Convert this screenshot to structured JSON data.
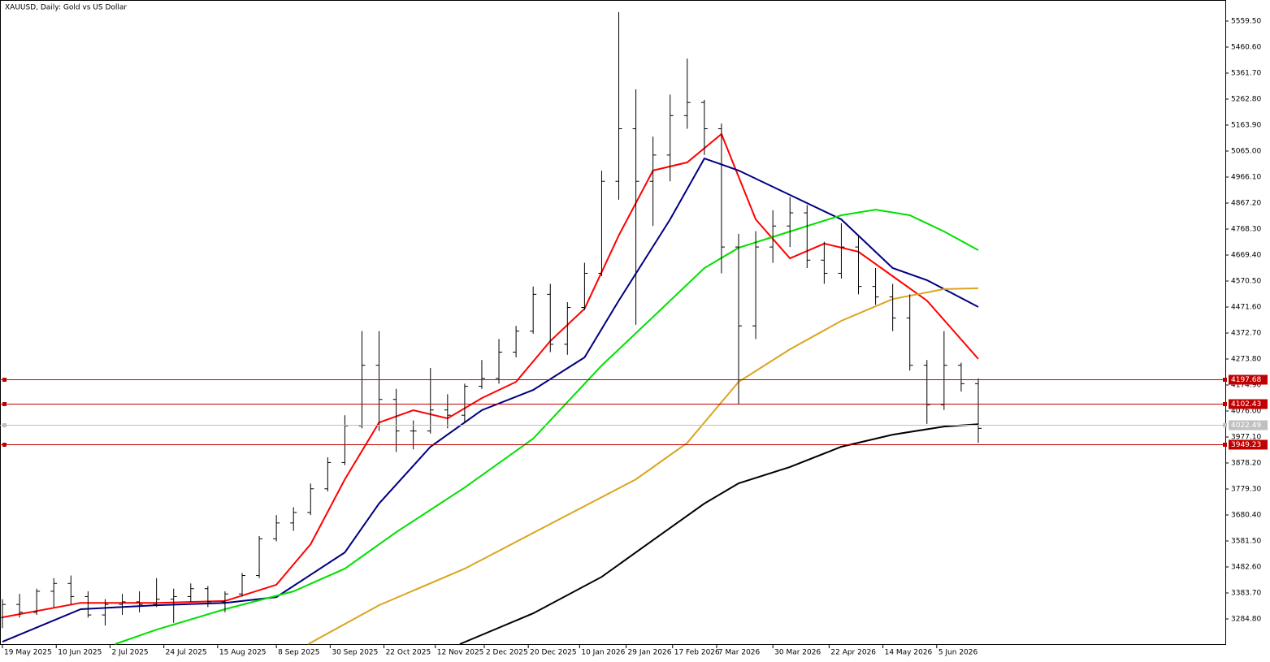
{
  "chart_data": {
    "type": "ohlc",
    "title": "XAUUSD, Daily:  Gold vs US Dollar",
    "xlim": [
      "2025-05-18",
      "2026-10-01"
    ],
    "ylim": [
      3189.0,
      5639.86
    ],
    "yticks": [
      {
        "value": 5559.5,
        "label": "5559.50"
      },
      {
        "value": 5460.6,
        "label": "5460.60"
      },
      {
        "value": 5361.7,
        "label": "5361.70"
      },
      {
        "value": 5262.8,
        "label": "5262.80"
      },
      {
        "value": 5163.9,
        "label": "5163.90"
      },
      {
        "value": 5065.0,
        "label": "5065.00"
      },
      {
        "value": 4966.1,
        "label": "4966.10"
      },
      {
        "value": 4867.2,
        "label": "4867.20"
      },
      {
        "value": 4768.3,
        "label": "4768.30"
      },
      {
        "value": 4669.4,
        "label": "4669.40"
      },
      {
        "value": 4570.5,
        "label": "4570.50"
      },
      {
        "value": 4471.6,
        "label": "4471.60"
      },
      {
        "value": 4372.7,
        "label": "4372.70"
      },
      {
        "value": 4273.8,
        "label": "4273.80"
      },
      {
        "value": 4174.9,
        "label": "4174.90"
      },
      {
        "value": 4076.0,
        "label": "4076.00"
      },
      {
        "value": 3977.1,
        "label": "3977.10"
      },
      {
        "value": 3878.2,
        "label": "3878.20"
      },
      {
        "value": 3779.3,
        "label": "3779.30"
      },
      {
        "value": 3680.4,
        "label": "3680.40"
      },
      {
        "value": 3581.5,
        "label": "3581.50"
      },
      {
        "value": 3482.6,
        "label": "3482.60"
      },
      {
        "value": 3383.7,
        "label": "3383.70"
      },
      {
        "value": 3284.8,
        "label": "3284.80"
      }
    ],
    "xticks": [
      {
        "value": "2025-05-19",
        "label": "19 May 2025"
      },
      {
        "value": "2025-06-10",
        "label": "10 Jun 2025"
      },
      {
        "value": "2025-07-02",
        "label": "2 Jul 2025"
      },
      {
        "value": "2025-07-24",
        "label": "24 Jul 2025"
      },
      {
        "value": "2025-08-15",
        "label": "15 Aug 2025"
      },
      {
        "value": "2025-09-08",
        "label": "8 Sep 2025"
      },
      {
        "value": "2025-09-30",
        "label": "30 Sep 2025"
      },
      {
        "value": "2025-10-22",
        "label": "22 Oct 2025"
      },
      {
        "value": "2025-11-12",
        "label": "12 Nov 2025"
      },
      {
        "value": "2025-12-02",
        "label": "2 Dec 2025"
      },
      {
        "value": "2025-12-20",
        "label": "20 Dec 2025"
      },
      {
        "value": "2026-01-10",
        "label": "10 Jan 2026"
      },
      {
        "value": "2026-01-29",
        "label": "29 Jan 2026"
      },
      {
        "value": "2026-02-17",
        "label": "17 Feb 2026"
      },
      {
        "value": "2026-03-07",
        "label": "7 Mar 2026"
      },
      {
        "value": "2026-03-30",
        "label": "30 Mar 2026"
      },
      {
        "value": "2026-04-22",
        "label": "22 Apr 2026"
      },
      {
        "value": "2026-05-14",
        "label": "14 May 2026"
      },
      {
        "value": "2026-06-05",
        "label": "5 Jun 2026"
      }
    ],
    "color": "#000000",
    "x": [
      "2025-05-19",
      "2025-05-26",
      "2025-06-02",
      "2025-06-09",
      "2025-06-16",
      "2025-06-23",
      "2025-06-30",
      "2025-07-07",
      "2025-07-14",
      "2025-07-21",
      "2025-07-28",
      "2025-08-04",
      "2025-08-11",
      "2025-08-18",
      "2025-08-25",
      "2025-09-01",
      "2025-09-08",
      "2025-09-15",
      "2025-09-22",
      "2025-09-29",
      "2025-10-06",
      "2025-10-13",
      "2025-10-20",
      "2025-10-27",
      "2025-11-03",
      "2025-11-10",
      "2025-11-17",
      "2025-11-24",
      "2025-12-01",
      "2025-12-08",
      "2025-12-15",
      "2025-12-22",
      "2025-12-29",
      "2026-01-05",
      "2026-01-12",
      "2026-01-19",
      "2026-01-26",
      "2026-02-02",
      "2026-02-09",
      "2026-02-16",
      "2026-02-23",
      "2026-03-02",
      "2026-03-09",
      "2026-03-16",
      "2026-03-23",
      "2026-03-30",
      "2026-04-06",
      "2026-04-13",
      "2026-04-20",
      "2026-04-27",
      "2026-05-04",
      "2026-05-11",
      "2026-05-18",
      "2026-05-25",
      "2026-06-01",
      "2026-06-08",
      "2026-06-15",
      "2026-06-22"
    ],
    "open": [
      3290,
      3340,
      3310,
      3390,
      3420,
      3370,
      3300,
      3340,
      3350,
      3340,
      3360,
      3370,
      3400,
      3350,
      3380,
      3450,
      3590,
      3650,
      3690,
      3780,
      3880,
      4020,
      4250,
      4120,
      4000,
      4000,
      4080,
      4060,
      4170,
      4200,
      4300,
      4380,
      4520,
      4330,
      4470,
      4600,
      4950,
      5150,
      4950,
      5050,
      5200,
      5250,
      5150,
      4700,
      4400,
      4700,
      4780,
      4830,
      4650,
      4600,
      4700,
      4550,
      4510,
      4430,
      4250,
      4100,
      4250,
      4180
    ],
    "high": [
      3360,
      3380,
      3400,
      3440,
      3450,
      3390,
      3360,
      3380,
      3390,
      3440,
      3400,
      3420,
      3410,
      3390,
      3460,
      3600,
      3680,
      3710,
      3800,
      3900,
      4060,
      4380,
      4380,
      4160,
      4040,
      4240,
      4140,
      4180,
      4270,
      4350,
      4400,
      4550,
      4560,
      4490,
      4640,
      4990,
      5594,
      5300,
      5120,
      5280,
      5417,
      5260,
      5170,
      4750,
      4760,
      4840,
      4890,
      4860,
      4720,
      4790,
      4740,
      4620,
      4560,
      4520,
      4270,
      4380,
      4260,
      4200
    ],
    "low": [
      3250,
      3290,
      3300,
      3330,
      3340,
      3290,
      3260,
      3300,
      3310,
      3330,
      3270,
      3350,
      3330,
      3310,
      3370,
      3440,
      3580,
      3620,
      3680,
      3770,
      3870,
      4010,
      4000,
      3920,
      3930,
      3990,
      4010,
      4030,
      4160,
      4180,
      4280,
      4370,
      4300,
      4290,
      4460,
      4590,
      4880,
      4404,
      4780,
      4950,
      5150,
      5050,
      4600,
      4104,
      4350,
      4640,
      4700,
      4620,
      4560,
      4580,
      4520,
      4480,
      4380,
      4230,
      4027,
      4080,
      4150,
      3955
    ],
    "close": [
      3340,
      3310,
      3390,
      3420,
      3370,
      3300,
      3340,
      3350,
      3340,
      3360,
      3370,
      3400,
      3350,
      3380,
      3450,
      3590,
      3650,
      3690,
      3780,
      3880,
      4020,
      4250,
      4120,
      4000,
      4000,
      4080,
      4060,
      4170,
      4200,
      4300,
      4380,
      4520,
      4330,
      4470,
      4600,
      4950,
      5150,
      4950,
      5050,
      5200,
      5250,
      5150,
      4700,
      4400,
      4700,
      4780,
      4830,
      4650,
      4600,
      4700,
      4550,
      4510,
      4430,
      4250,
      4100,
      4250,
      4180,
      4010
    ],
    "series": [
      {
        "color": "#ff0000",
        "x": [
          "2025-05-19",
          "2025-06-20",
          "2025-07-21",
          "2025-08-18",
          "2025-09-08",
          "2025-09-22",
          "2025-10-06",
          "2025-10-20",
          "2025-11-03",
          "2025-11-17",
          "2025-12-01",
          "2025-12-15",
          "2025-12-29",
          "2026-01-12",
          "2026-01-26",
          "2026-02-09",
          "2026-02-23",
          "2026-03-09",
          "2026-03-23",
          "2026-04-06",
          "2026-04-20",
          "2026-05-04",
          "2026-05-18",
          "2026-06-01",
          "2026-06-22"
        ],
        "values": [
          3291,
          3346,
          3346,
          3353,
          3415,
          3569,
          3816,
          4032,
          4079,
          4048,
          4125,
          4187,
          4342,
          4465,
          4744,
          4991,
          5022,
          5130,
          4805,
          4657,
          4713,
          4682,
          4589,
          4496,
          4274
        ]
      },
      {
        "color": "#000080",
        "x": [
          "2025-05-19",
          "2025-06-20",
          "2025-07-21",
          "2025-08-18",
          "2025-09-08",
          "2025-10-06",
          "2025-10-20",
          "2025-11-10",
          "2025-12-01",
          "2025-12-22",
          "2026-01-12",
          "2026-01-26",
          "2026-02-16",
          "2026-03-02",
          "2026-03-16",
          "2026-04-06",
          "2026-04-27",
          "2026-05-18",
          "2026-06-01",
          "2026-06-22"
        ],
        "values": [
          3198,
          3322,
          3337,
          3346,
          3368,
          3538,
          3724,
          3940,
          4079,
          4156,
          4280,
          4496,
          4805,
          5037,
          4991,
          4898,
          4805,
          4620,
          4574,
          4472
        ]
      },
      {
        "color": "#00e000",
        "x": [
          "2025-07-04",
          "2025-07-21",
          "2025-08-18",
          "2025-09-15",
          "2025-10-06",
          "2025-10-27",
          "2025-11-24",
          "2025-12-22",
          "2026-01-19",
          "2026-02-09",
          "2026-03-02",
          "2026-03-16",
          "2026-04-06",
          "2026-04-27",
          "2026-05-11",
          "2026-05-25",
          "2026-06-08",
          "2026-06-22"
        ],
        "values": [
          3189,
          3244,
          3322,
          3390,
          3476,
          3615,
          3785,
          3971,
          4249,
          4434,
          4620,
          4697,
          4759,
          4821,
          4842,
          4821,
          4759,
          4688
        ]
      },
      {
        "color": "#daa520",
        "x": [
          "2025-09-21",
          "2025-10-20",
          "2025-11-24",
          "2025-12-29",
          "2026-02-02",
          "2026-02-23",
          "2026-03-16",
          "2026-04-06",
          "2026-04-27",
          "2026-05-18",
          "2026-06-08",
          "2026-06-22"
        ],
        "values": [
          3189,
          3337,
          3476,
          3646,
          3816,
          3955,
          4187,
          4311,
          4419,
          4502,
          4540,
          4543
        ]
      },
      {
        "color": "#000000",
        "x": [
          "2025-11-22",
          "2025-12-22",
          "2026-01-19",
          "2026-02-09",
          "2026-03-02",
          "2026-03-16",
          "2026-04-06",
          "2026-04-27",
          "2026-05-18",
          "2026-06-08",
          "2026-06-22"
        ],
        "values": [
          3189,
          3306,
          3445,
          3585,
          3724,
          3801,
          3863,
          3940,
          3986,
          4017,
          4026
        ]
      }
    ],
    "levels": [
      {
        "value": 4197.68,
        "color": "#c00000"
      },
      {
        "value": 4102.43,
        "color": "#c00000"
      },
      {
        "value": 4022.49,
        "color": "#c0c0c0"
      },
      {
        "value": 3949.23,
        "color": "#c00000"
      }
    ]
  }
}
